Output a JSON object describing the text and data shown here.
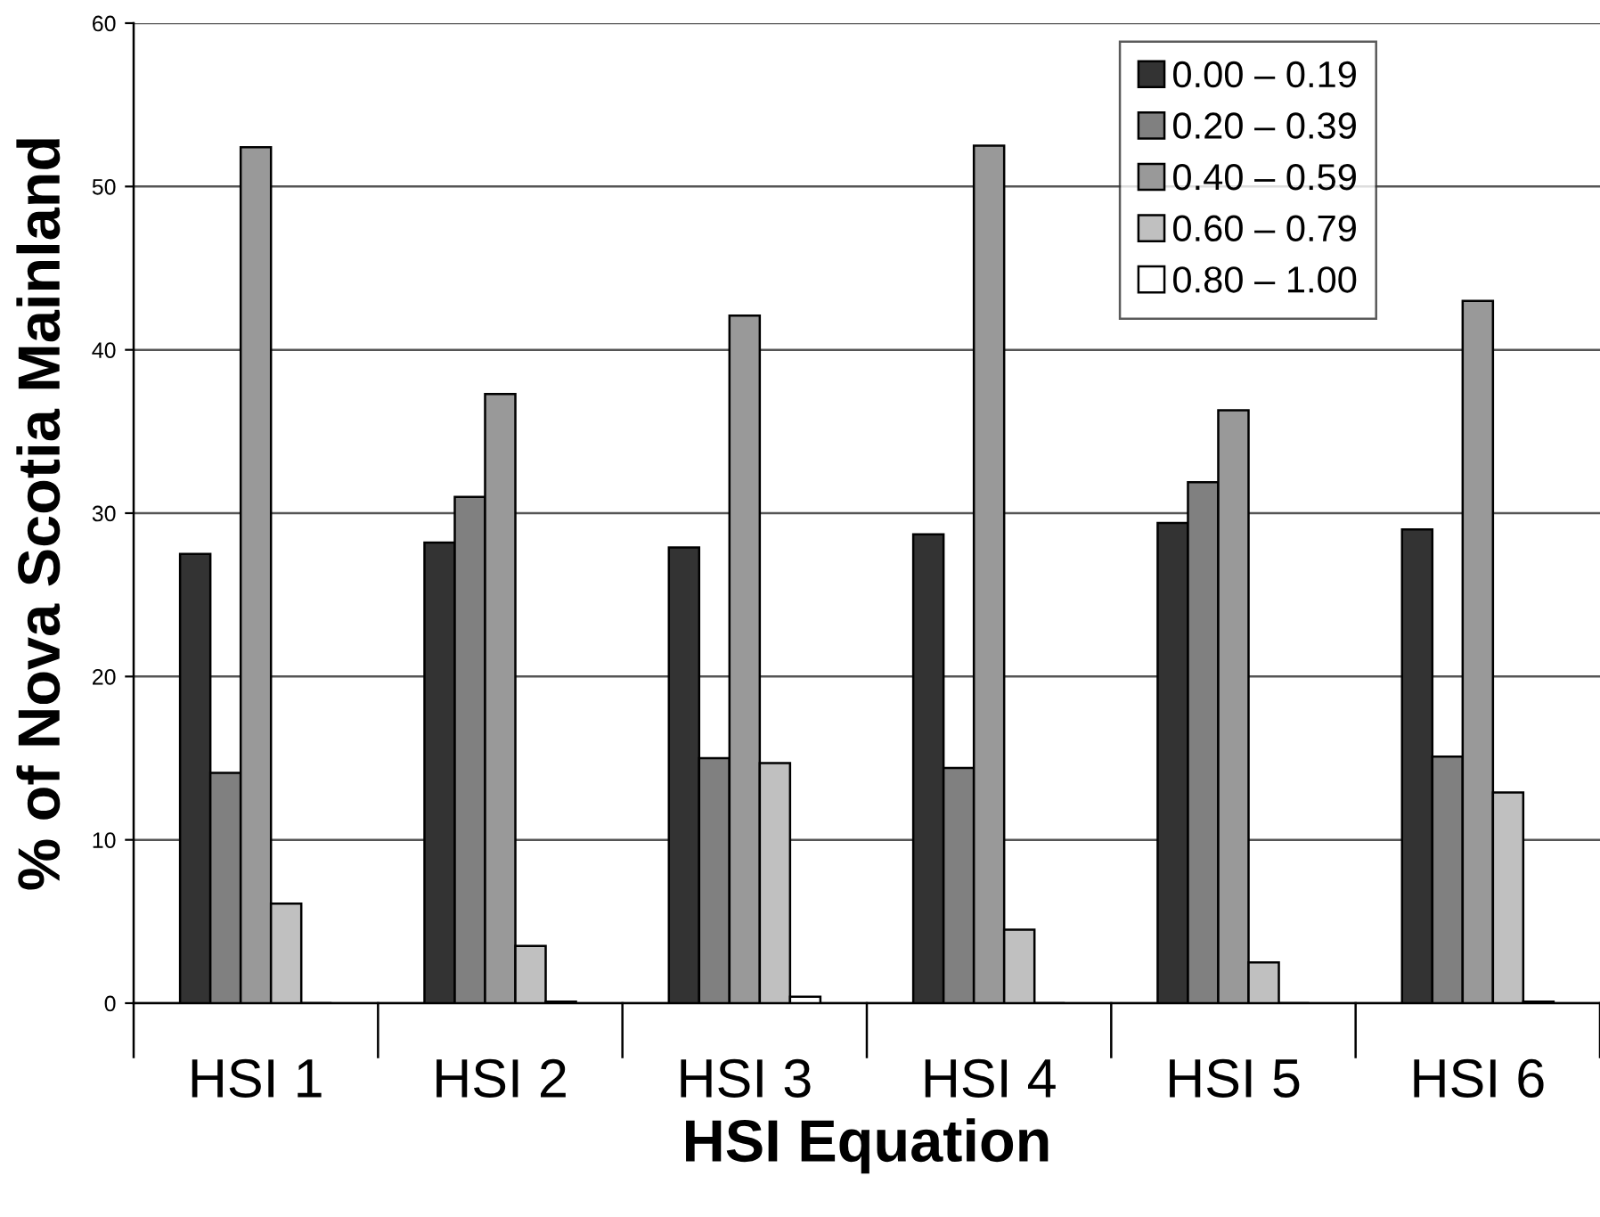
{
  "chart_data": {
    "type": "bar",
    "xlabel": "HSI Equation",
    "ylabel": "% of Nova Scotia Mainland",
    "categories": [
      "HSI 1",
      "HSI 2",
      "HSI 3",
      "HSI 4",
      "HSI 5",
      "HSI 6"
    ],
    "series": [
      {
        "name": "0.00 – 0.19",
        "color": "#333333",
        "values": [
          27.5,
          28.2,
          27.9,
          28.7,
          29.4,
          29.0
        ]
      },
      {
        "name": "0.20 – 0.39",
        "color": "#808080",
        "values": [
          14.1,
          31.0,
          15.0,
          14.4,
          31.9,
          15.1
        ]
      },
      {
        "name": "0.40 – 0.59",
        "color": "#999999",
        "values": [
          52.4,
          37.3,
          42.1,
          52.5,
          36.3,
          43.0
        ]
      },
      {
        "name": "0.60 – 0.79",
        "color": "#c0c0c0",
        "values": [
          6.1,
          3.5,
          14.7,
          4.5,
          2.5,
          12.9
        ]
      },
      {
        "name": "0.80 – 1.00",
        "color": "#ffffff",
        "values": [
          0,
          0.1,
          0.4,
          0,
          0,
          0.1
        ]
      }
    ],
    "ylim": [
      0,
      60
    ],
    "yticks": [
      0,
      10,
      20,
      30,
      40,
      50,
      60
    ],
    "grid": "y",
    "legend": "top right"
  }
}
